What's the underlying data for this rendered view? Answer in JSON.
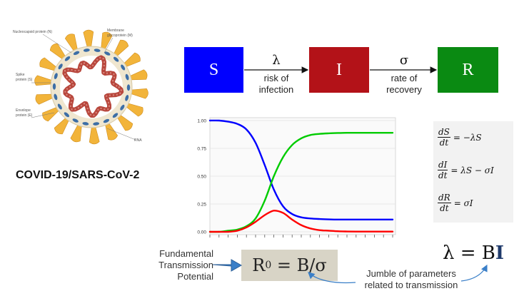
{
  "virus": {
    "caption": "COVID-19/SARS-CoV-2",
    "labels": {
      "nucleocapsid": "Nucleocapsid protein (N)",
      "membrane_1": "Membrane",
      "membrane_2": "glycoprotein (M)",
      "spike_1": "Spike",
      "spike_2": "protein (S)",
      "envelope_1": "Envelope",
      "envelope_2": "protein (E)",
      "rna": "RNA"
    },
    "colors": {
      "spike": "#f2b43a",
      "envelope_ring": "#efe6cf",
      "rna": "#b8473d",
      "membrane": "#3c6ea6"
    }
  },
  "flow": {
    "s_label": "S",
    "i_label": "I",
    "r_label": "R",
    "lambda": "λ",
    "lambda_text_1": "risk of",
    "lambda_text_2": "infection",
    "sigma": "σ",
    "sigma_text_1": "rate of",
    "sigma_text_2": "recovery",
    "colors": {
      "s": "#0000ff",
      "i": "#b31218",
      "r": "#0a8a12"
    }
  },
  "chart_data": {
    "type": "line",
    "title": "",
    "xlabel": "",
    "ylabel": "",
    "ylim": [
      0,
      1
    ],
    "yticks": [
      "1.00",
      "0.75",
      "0.50",
      "0.25",
      "0.00"
    ],
    "x": [
      0,
      1,
      2,
      3,
      4,
      5,
      6,
      7,
      8,
      9,
      10,
      11,
      12,
      13,
      14,
      15,
      16,
      17,
      18,
      19,
      20
    ],
    "series": [
      {
        "color": "#0000ff",
        "values": [
          1.0,
          1.0,
          0.99,
          0.97,
          0.92,
          0.8,
          0.6,
          0.38,
          0.23,
          0.16,
          0.13,
          0.12,
          0.115,
          0.112,
          0.11,
          0.11,
          0.11,
          0.11,
          0.11,
          0.11,
          0.11
        ]
      },
      {
        "color": "#00cc00",
        "values": [
          0.0,
          0.0,
          0.01,
          0.02,
          0.05,
          0.12,
          0.28,
          0.5,
          0.67,
          0.78,
          0.84,
          0.87,
          0.88,
          0.885,
          0.888,
          0.89,
          0.89,
          0.89,
          0.89,
          0.89,
          0.89
        ]
      },
      {
        "color": "#ff0000",
        "values": [
          0.0,
          0.0,
          0.0,
          0.01,
          0.04,
          0.09,
          0.15,
          0.19,
          0.17,
          0.11,
          0.06,
          0.03,
          0.015,
          0.01,
          0.005,
          0.003,
          0.002,
          0.002,
          0.002,
          0.002,
          0.002
        ]
      }
    ],
    "grid": true,
    "legend": "none"
  },
  "equations": {
    "eq1_num": "dS",
    "eq1_den": "dt",
    "eq1_rhs": "= −λS",
    "eq2_num": "dI",
    "eq2_den": "dt",
    "eq2_rhs": "= λS − σI",
    "eq3_num": "dR",
    "eq3_den": "dt",
    "eq3_rhs": "= σI"
  },
  "bottom": {
    "ftp_1": "Fundamental",
    "ftp_2": "Transmission",
    "ftp_3": "Potential",
    "r0_base": "R",
    "r0_sub": "0",
    "r0_rhs": " = B/σ",
    "lambda_lhs": "λ = B",
    "lambda_bold": "I",
    "jumble_1": "Jumble of parameters",
    "jumble_2": "related to transmission"
  }
}
